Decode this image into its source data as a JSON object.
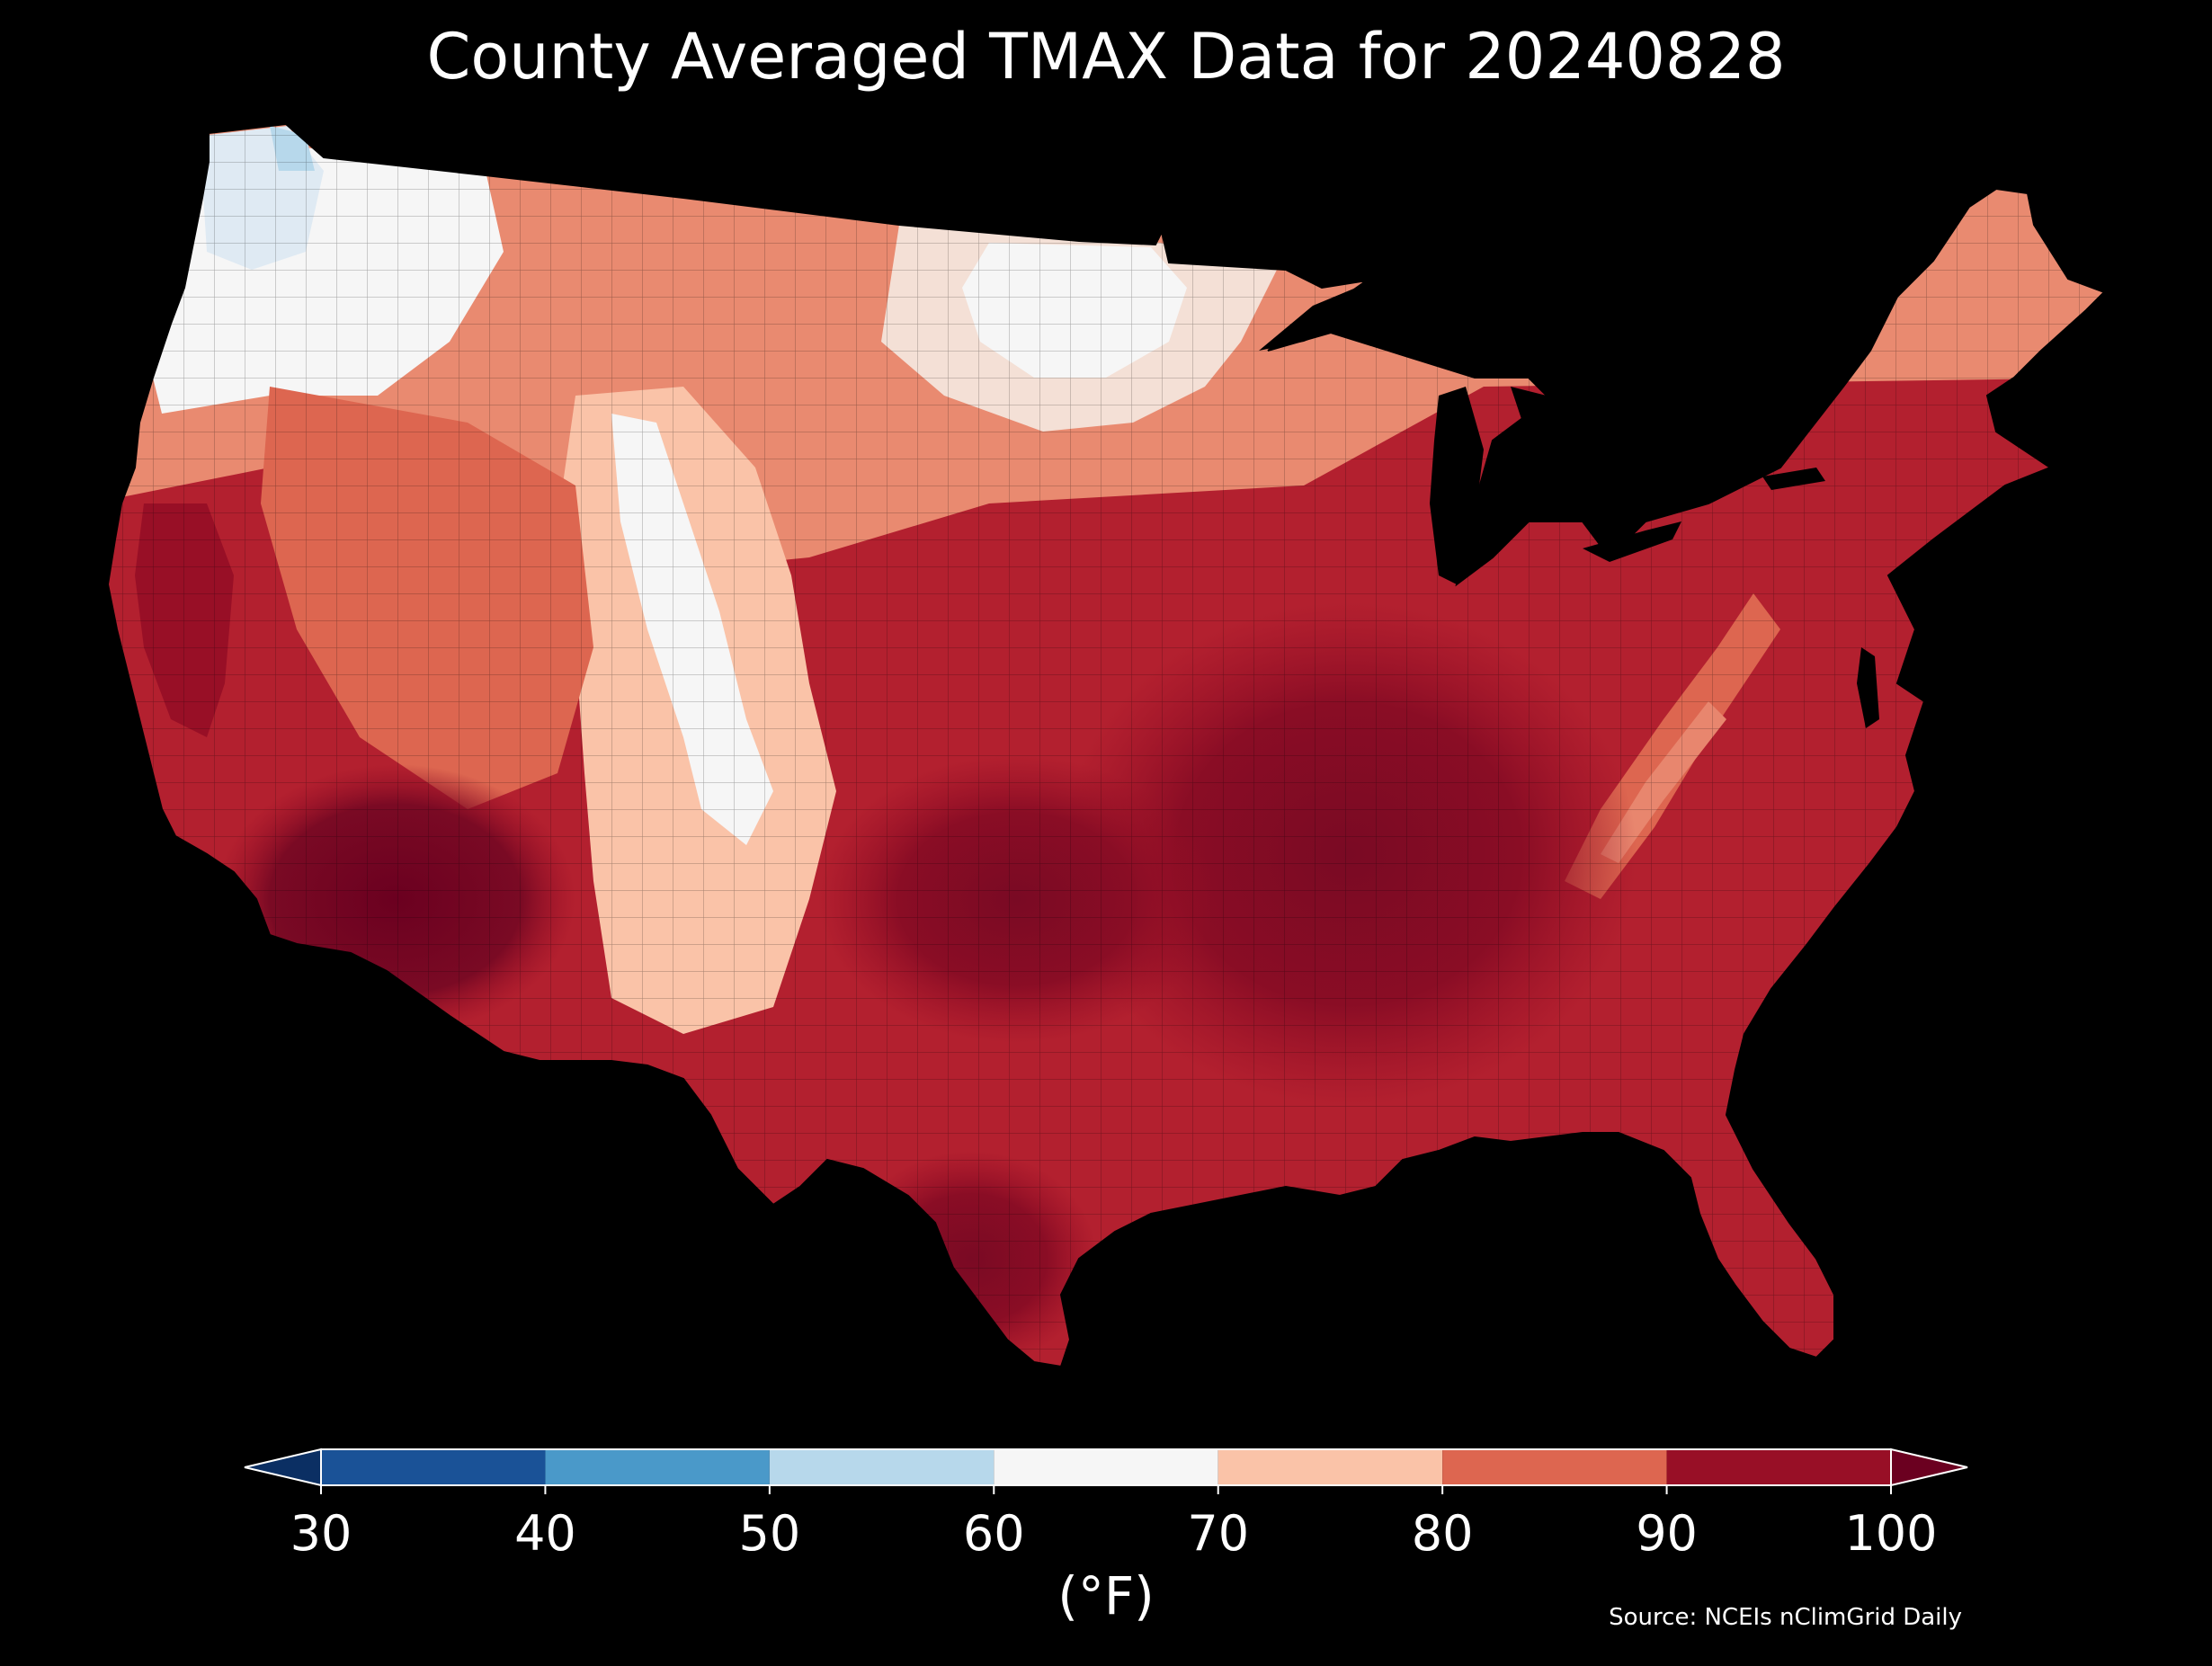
{
  "title": "County Averaged TMAX Data for 20240828",
  "unit_label": "(°F)",
  "source": "Source: NCEIs nClimGrid Daily",
  "colorbar": {
    "ticks": [
      "30",
      "40",
      "50",
      "60",
      "70",
      "80",
      "90",
      "100"
    ],
    "bins": [
      {
        "from": 30,
        "to": 40,
        "color": "#1a5297"
      },
      {
        "from": 40,
        "to": 50,
        "color": "#4a99c9"
      },
      {
        "from": 50,
        "to": 60,
        "color": "#b7d8eb"
      },
      {
        "from": 60,
        "to": 70,
        "color": "#f6f6f6"
      },
      {
        "from": 70,
        "to": 80,
        "color": "#fac3a8"
      },
      {
        "from": 80,
        "to": 90,
        "color": "#dd6650"
      },
      {
        "from": 90,
        "to": 100,
        "color": "#980f26"
      }
    ],
    "under_color": "#0b2f63",
    "over_color": "#6b0020",
    "extend": "both"
  },
  "regions": [
    {
      "name": "pacific-northwest-coast",
      "color": "#b7d8eb"
    },
    {
      "name": "northern-rockies",
      "color": "#f6f6f6"
    },
    {
      "name": "great-basin",
      "color": "#dd6650"
    },
    {
      "name": "california-central-valley",
      "color": "#980f26"
    },
    {
      "name": "desert-southwest",
      "color": "#6b0020"
    },
    {
      "name": "central-rockies",
      "color": "#fac3a8"
    },
    {
      "name": "northern-plains",
      "color": "#f6f6f6"
    },
    {
      "name": "southern-plains",
      "color": "#980f26"
    },
    {
      "name": "midwest",
      "color": "#980f26"
    },
    {
      "name": "southeast",
      "color": "#980f26"
    },
    {
      "name": "appalachians",
      "color": "#dd6650"
    },
    {
      "name": "northeast",
      "color": "#dd6650"
    },
    {
      "name": "florida",
      "color": "#c0303a"
    }
  ]
}
